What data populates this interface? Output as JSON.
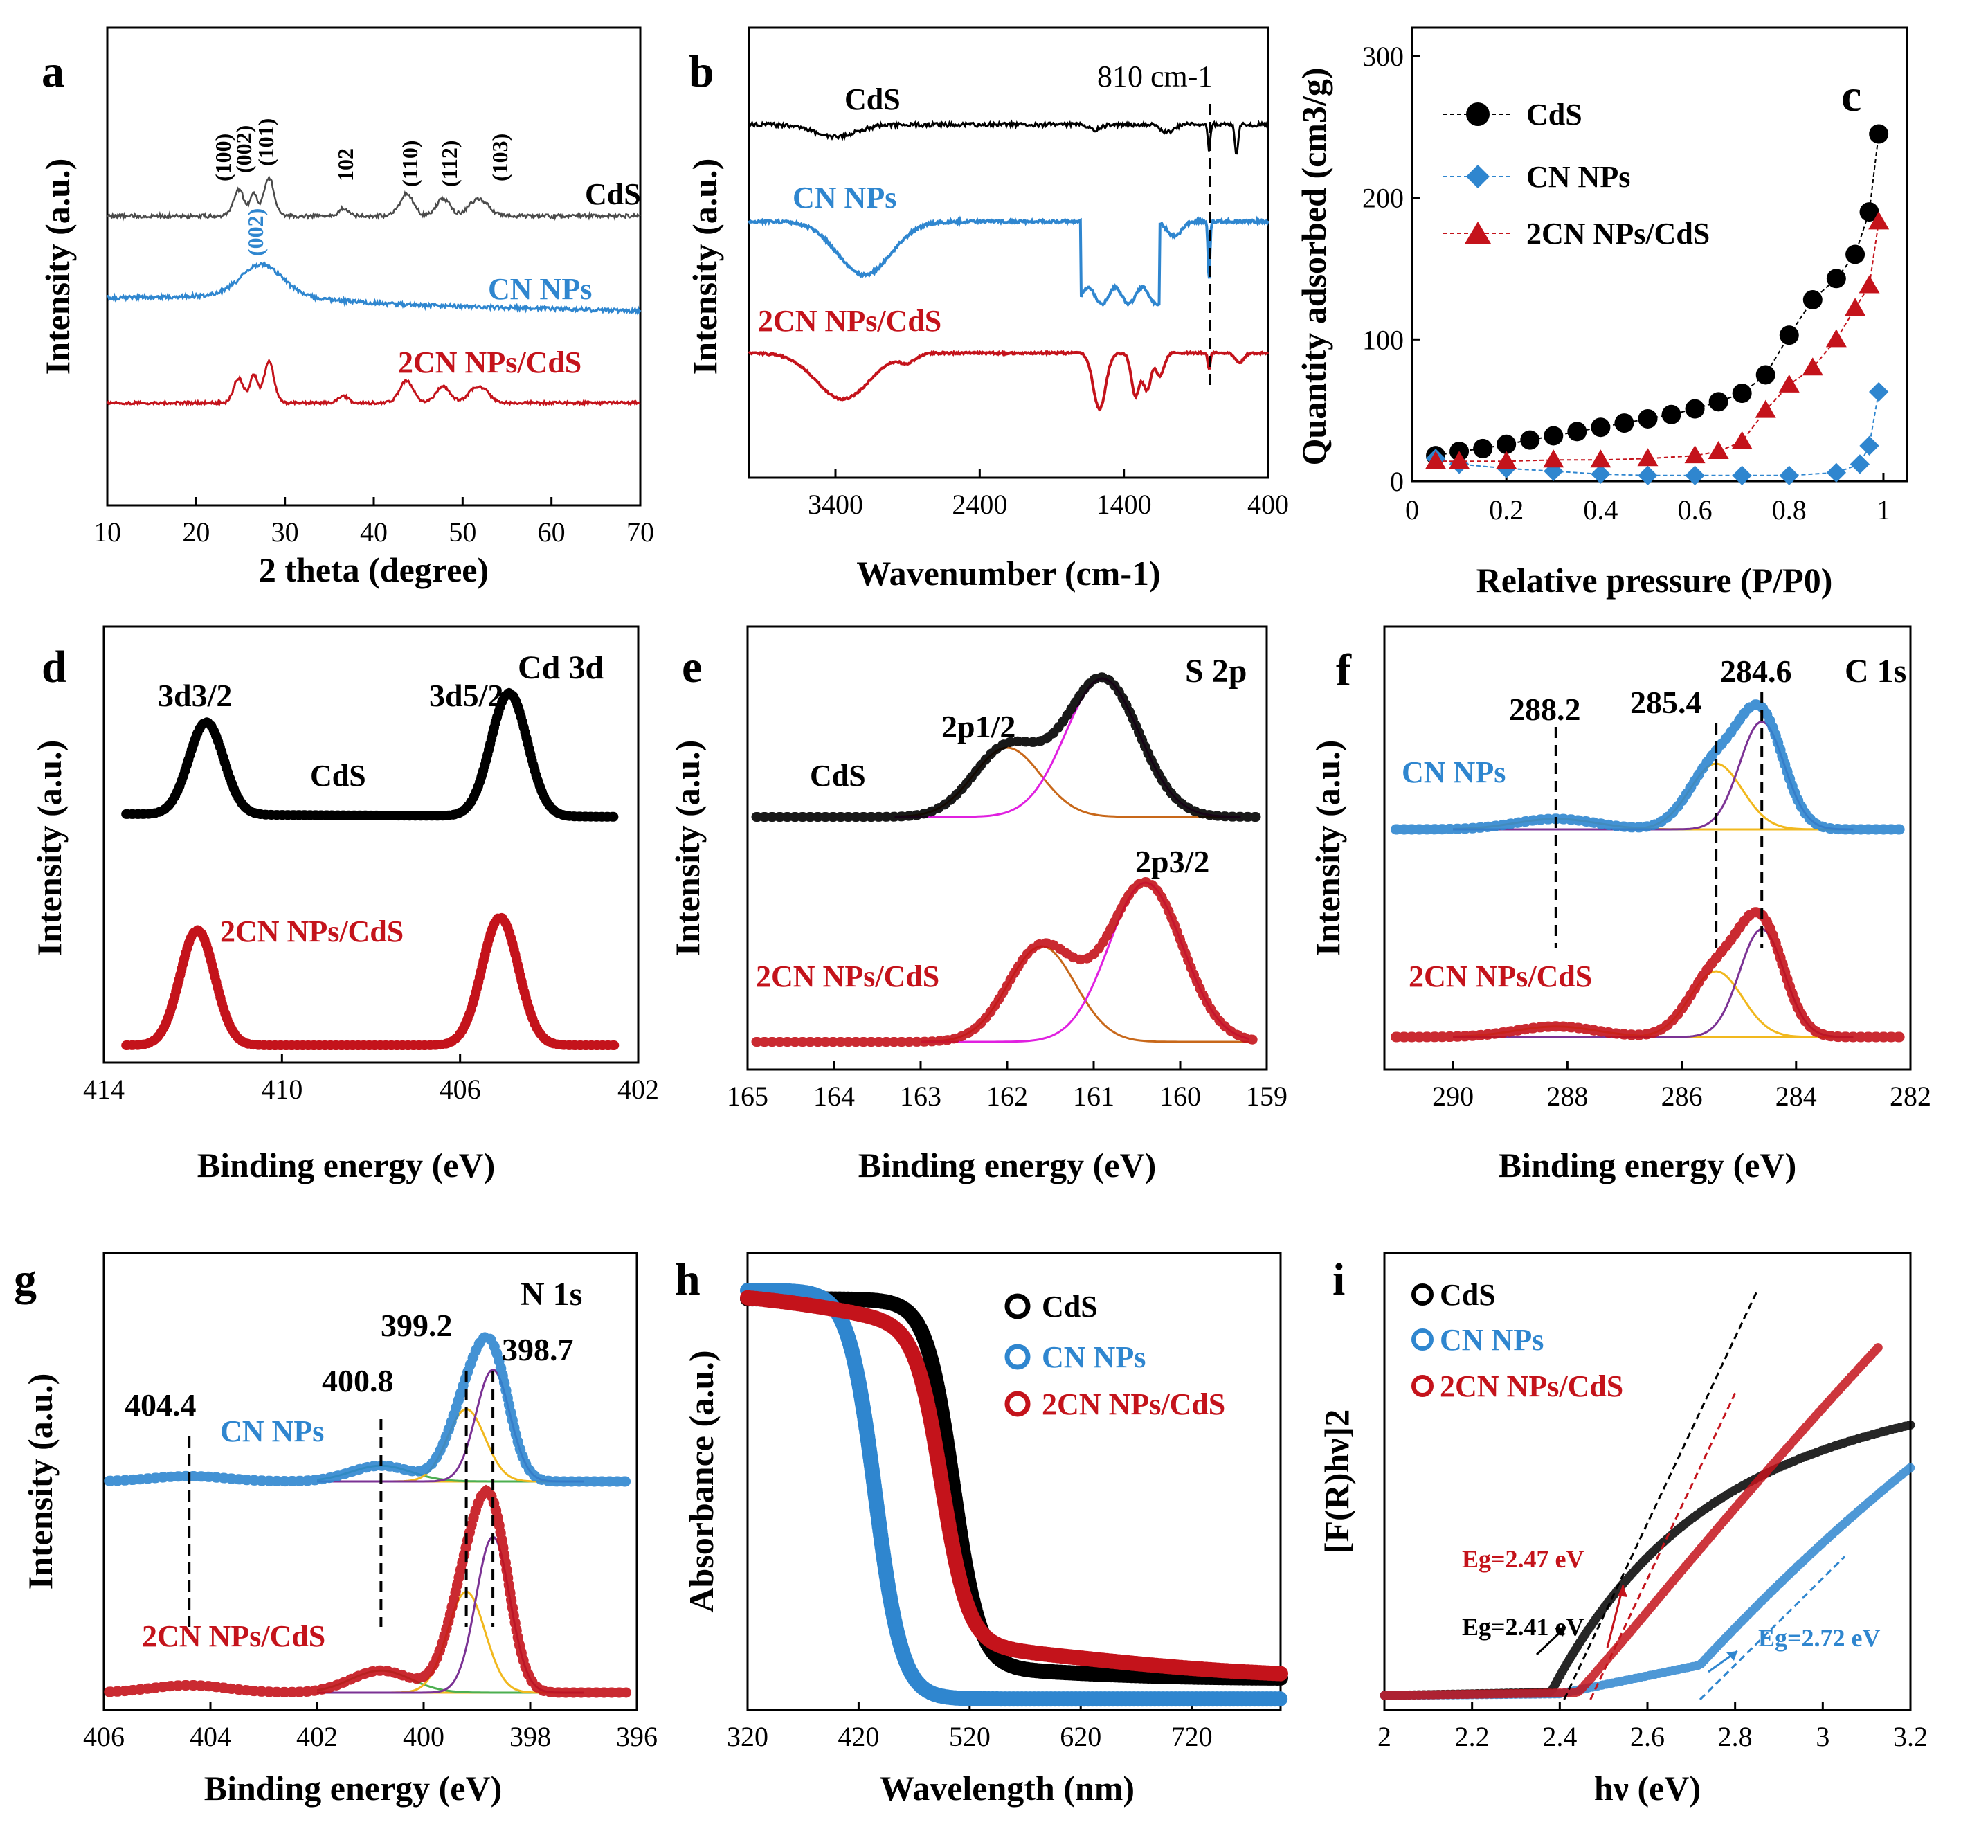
{
  "colors": {
    "cds": "#000000",
    "cn": "#2f86cf",
    "comp": "#c4131b",
    "fit_magenta": "#e020e0",
    "fit_orange": "#c8681a",
    "fit_yellow": "#f1b81e",
    "fit_purple": "#7b3294",
    "fit_green": "#4caf50"
  },
  "panels": {
    "a": {
      "label": "a",
      "xlabel": "2 theta (degree)",
      "ylabel": "Intensity (a.u.)",
      "xticks": [
        "10",
        "20",
        "30",
        "40",
        "50",
        "60",
        "70"
      ],
      "series": [
        "CdS",
        "CN NPs",
        "2CN NPs/CdS"
      ],
      "peaks": [
        "(100)",
        "(002)",
        "(101)",
        "102",
        "(110)",
        "(112)",
        "(103)"
      ],
      "cn_peak": "(002)"
    },
    "b": {
      "label": "b",
      "xlabel": "Wavenumber (cm-1)",
      "ylabel": "Intensity (a.u.)",
      "xticks": [
        "3400",
        "2400",
        "1400",
        "400"
      ],
      "series": [
        "CdS",
        "CN NPs",
        "2CN NPs/CdS"
      ],
      "annotation": "810 cm-1"
    },
    "c": {
      "label": "c",
      "xlabel": "Relative pressure (P/P0)",
      "ylabel": "Quantity adsorbed (cm3/g)",
      "xticks": [
        "0",
        "0.2",
        "0.4",
        "0.6",
        "0.8",
        "1"
      ],
      "yticks": [
        "0",
        "100",
        "200",
        "300"
      ],
      "legend": [
        "CdS",
        "CN NPs",
        "2CN NPs/CdS"
      ]
    },
    "d": {
      "label": "d",
      "xlabel": "Binding energy (eV)",
      "ylabel": "Intensity (a.u.)",
      "xticks": [
        "414",
        "410",
        "406",
        "402"
      ],
      "title": "Cd 3d",
      "peak_left": "3d3/2",
      "peak_right": "3d5/2",
      "series": [
        "CdS",
        "2CN NPs/CdS"
      ]
    },
    "e": {
      "label": "e",
      "xlabel": "Binding energy (eV)",
      "ylabel": "Intensity (a.u.)",
      "xticks": [
        "165",
        "164",
        "163",
        "162",
        "161",
        "160",
        "159"
      ],
      "title": "S 2p",
      "peak_a": "2p1/2",
      "peak_b": "2p3/2",
      "series": [
        "CdS",
        "2CN NPs/CdS"
      ]
    },
    "f": {
      "label": "f",
      "xlabel": "Binding energy (eV)",
      "ylabel": "Intensity (a.u.)",
      "xticks": [
        "290",
        "288",
        "286",
        "284",
        "282"
      ],
      "title": "C 1s",
      "markers": [
        "288.2",
        "285.4",
        "284.6"
      ],
      "series": [
        "CN NPs",
        "2CN NPs/CdS"
      ]
    },
    "g": {
      "label": "g",
      "xlabel": "Binding energy (eV)",
      "ylabel": "Intensity (a.u.)",
      "xticks": [
        "406",
        "404",
        "402",
        "400",
        "398",
        "396"
      ],
      "title": "N 1s",
      "markers": [
        "404.4",
        "400.8",
        "399.2",
        "398.7"
      ],
      "series": [
        "CN NPs",
        "2CN NPs/CdS"
      ]
    },
    "h": {
      "label": "h",
      "xlabel": "Wavelength (nm)",
      "ylabel": "Absorbance (a.u.)",
      "xticks": [
        "320",
        "420",
        "520",
        "620",
        "720"
      ],
      "legend": [
        "CdS",
        "CN NPs",
        "2CN NPs/CdS"
      ]
    },
    "i": {
      "label": "i",
      "xlabel": "hν (eV)",
      "ylabel": "[F(R)hν]2",
      "xticks": [
        "2",
        "2.2",
        "2.4",
        "2.6",
        "2.8",
        "3",
        "3.2"
      ],
      "legend": [
        "CdS",
        "CN NPs",
        "2CN NPs/CdS"
      ],
      "eg_cds": "Eg=2.41 eV",
      "eg_comp": "Eg=2.47 eV",
      "eg_cn": "Eg=2.72 eV"
    }
  },
  "chart_data": [
    {
      "panel": "a",
      "type": "line",
      "title": "",
      "xlabel": "2 theta (degree)",
      "ylabel": "Intensity (a.u.)",
      "xlim": [
        10,
        70
      ],
      "series": [
        {
          "name": "CdS",
          "peaks_2theta": [
            24.8,
            26.5,
            28.2,
            36.6,
            43.7,
            47.8,
            51.8
          ]
        },
        {
          "name": "CN NPs",
          "peaks_2theta": [
            27.4
          ]
        },
        {
          "name": "2CN NPs/CdS",
          "peaks_2theta": [
            24.8,
            26.5,
            28.2,
            36.6,
            43.7,
            47.8,
            51.8
          ]
        }
      ]
    },
    {
      "panel": "b",
      "type": "line",
      "title": "",
      "xlabel": "Wavenumber (cm-1)",
      "ylabel": "Intensity (a.u.)",
      "xlim": [
        4000,
        400
      ],
      "series": [
        {
          "name": "CdS",
          "bands_cm1": [
            3400,
            1600,
            1100,
            810,
            620
          ]
        },
        {
          "name": "CN NPs",
          "bands_cm1": [
            3200,
            1630,
            1570,
            1400,
            1240,
            810
          ]
        },
        {
          "name": "2CN NPs/CdS",
          "bands_cm1": [
            3400,
            1630,
            1570,
            1320,
            1240,
            810
          ]
        }
      ]
    },
    {
      "panel": "c",
      "type": "scatter",
      "title": "",
      "xlabel": "Relative pressure (P/P0)",
      "ylabel": "Quantity adsorbed (cm3/g)",
      "xlim": [
        0,
        1.05
      ],
      "ylim": [
        0,
        320
      ],
      "series": [
        {
          "name": "CdS",
          "x": [
            0.05,
            0.1,
            0.15,
            0.2,
            0.25,
            0.3,
            0.35,
            0.4,
            0.45,
            0.5,
            0.55,
            0.6,
            0.65,
            0.7,
            0.75,
            0.8,
            0.85,
            0.9,
            0.94,
            0.97,
            0.99
          ],
          "y": [
            18,
            21,
            23,
            26,
            29,
            32,
            35,
            38,
            41,
            44,
            47,
            51,
            56,
            62,
            75,
            103,
            128,
            143,
            160,
            190,
            245
          ]
        },
        {
          "name": "CN NPs",
          "x": [
            0.05,
            0.1,
            0.2,
            0.3,
            0.4,
            0.5,
            0.6,
            0.7,
            0.8,
            0.9,
            0.95,
            0.97,
            0.99
          ],
          "y": [
            16,
            12,
            9,
            7,
            5,
            4,
            4,
            4,
            4,
            6,
            12,
            25,
            63
          ]
        },
        {
          "name": "2CN NPs/CdS",
          "x": [
            0.05,
            0.1,
            0.2,
            0.3,
            0.4,
            0.5,
            0.6,
            0.65,
            0.7,
            0.75,
            0.8,
            0.85,
            0.9,
            0.94,
            0.97,
            0.99
          ],
          "y": [
            14,
            14,
            14,
            15,
            15,
            16,
            18,
            21,
            28,
            50,
            68,
            80,
            100,
            122,
            138,
            183
          ]
        }
      ]
    },
    {
      "panel": "d",
      "type": "line",
      "title": "Cd 3d",
      "xlabel": "Binding energy (eV)",
      "ylabel": "Intensity (a.u.)",
      "xlim": [
        414,
        402
      ],
      "series": [
        {
          "name": "CdS",
          "peaks_eV": [
            411.7,
            404.9
          ]
        },
        {
          "name": "2CN NPs/CdS",
          "peaks_eV": [
            411.9,
            405.1
          ]
        }
      ]
    },
    {
      "panel": "e",
      "type": "line",
      "title": "S 2p",
      "xlabel": "Binding energy (eV)",
      "ylabel": "Intensity (a.u.)",
      "xlim": [
        165,
        159
      ],
      "series": [
        {
          "name": "CdS",
          "peaks_eV": [
            162.0,
            160.9
          ]
        },
        {
          "name": "2CN NPs/CdS",
          "peaks_eV": [
            161.6,
            160.4
          ]
        }
      ]
    },
    {
      "panel": "f",
      "type": "line",
      "title": "C 1s",
      "xlabel": "Binding energy (eV)",
      "ylabel": "Intensity (a.u.)",
      "xlim": [
        291,
        282
      ],
      "series": [
        {
          "name": "CN NPs",
          "peaks_eV": [
            288.2,
            285.4,
            284.6
          ]
        },
        {
          "name": "2CN NPs/CdS",
          "peaks_eV": [
            288.2,
            285.4,
            284.6
          ]
        }
      ]
    },
    {
      "panel": "g",
      "type": "line",
      "title": "N 1s",
      "xlabel": "Binding energy (eV)",
      "ylabel": "Intensity (a.u.)",
      "xlim": [
        406,
        396
      ],
      "series": [
        {
          "name": "CN NPs",
          "peaks_eV": [
            404.4,
            400.8,
            399.2,
            398.7
          ]
        },
        {
          "name": "2CN NPs/CdS",
          "peaks_eV": [
            404.4,
            400.8,
            399.2,
            398.7
          ]
        }
      ]
    },
    {
      "panel": "h",
      "type": "line",
      "title": "",
      "xlabel": "Wavelength (nm)",
      "ylabel": "Absorbance (a.u.)",
      "xlim": [
        320,
        800
      ],
      "series": [
        {
          "name": "CdS",
          "absorption_edge_nm": 510
        },
        {
          "name": "CN NPs",
          "absorption_edge_nm": 440
        },
        {
          "name": "2CN NPs/CdS",
          "absorption_edge_nm": 500
        }
      ]
    },
    {
      "panel": "i",
      "type": "line",
      "title": "",
      "xlabel": "hν (eV)",
      "ylabel": "[F(R)hν]2",
      "xlim": [
        2,
        3.2
      ],
      "series": [
        {
          "name": "CdS",
          "band_gap_eV": 2.41
        },
        {
          "name": "CN NPs",
          "band_gap_eV": 2.72
        },
        {
          "name": "2CN NPs/CdS",
          "band_gap_eV": 2.47
        }
      ]
    }
  ]
}
